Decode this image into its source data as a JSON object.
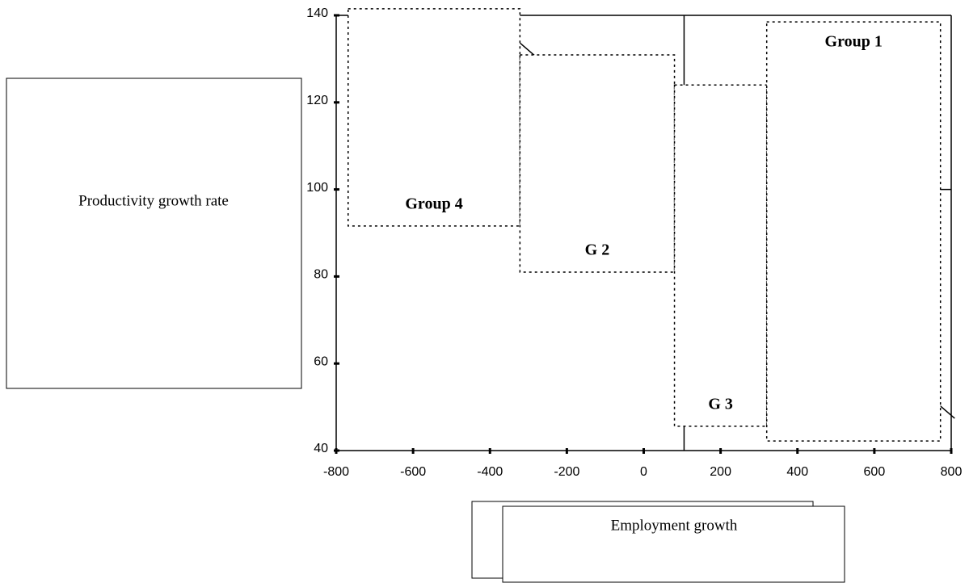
{
  "chart_data": {
    "type": "region",
    "x_label": "Employment growth",
    "y_label": "Productivity growth rate",
    "xlim": [
      -800,
      800
    ],
    "ylim": [
      40,
      140
    ],
    "xticks": [
      -800,
      -600,
      -400,
      -200,
      0,
      200,
      400,
      600,
      800
    ],
    "yticks": [
      40,
      60,
      80,
      100,
      120,
      140
    ],
    "regions": [
      {
        "name": "Group 4",
        "x": [
          -769,
          -322
        ],
        "y": [
          91.6,
          141.5
        ],
        "label_at": "bottom"
      },
      {
        "name": "G 2",
        "x": [
          -322,
          80
        ],
        "y": [
          81,
          130.9
        ],
        "label_at": "bottom"
      },
      {
        "name": "G 3",
        "x": [
          80,
          320
        ],
        "y": [
          45.6,
          124
        ],
        "label_at": "bottom"
      },
      {
        "name": "Group 1",
        "x": [
          320,
          772
        ],
        "y": [
          42.2,
          138.5
        ],
        "label_at": "top"
      }
    ],
    "vline": {
      "x": 105,
      "y": [
        40,
        140
      ]
    },
    "hline": {
      "y": 100,
      "x": [
        700,
        800
      ]
    },
    "trend": {
      "x": [
        -322.5,
        809
      ],
      "y": [
        133.7,
        47.4
      ]
    }
  }
}
